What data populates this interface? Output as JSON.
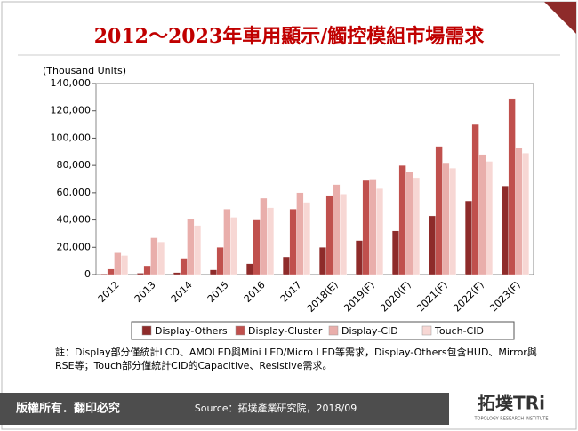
{
  "chart_data": {
    "type": "bar",
    "title": "2012～2023年車用顯示/觸控模組市場需求",
    "y_label": "(Thousand Units)",
    "categories": [
      "2012",
      "2013",
      "2014",
      "2015",
      "2016",
      "2017",
      "2018(E)",
      "2019(F)",
      "2020(F)",
      "2021(F)",
      "2022(F)",
      "2023(F)"
    ],
    "series": [
      {
        "name": "Display-Others",
        "color": "#8e2b2a",
        "values": [
          500,
          1000,
          1500,
          3500,
          8000,
          13000,
          20000,
          25000,
          32000,
          43000,
          54000,
          65000
        ]
      },
      {
        "name": "Display-Cluster",
        "color": "#c0504d",
        "values": [
          4000,
          6500,
          12000,
          20000,
          40000,
          48000,
          58000,
          69000,
          80000,
          94000,
          110000,
          129000
        ]
      },
      {
        "name": "Display-CID",
        "color": "#e9aeab",
        "values": [
          16000,
          27000,
          41000,
          48000,
          56000,
          60000,
          66000,
          70000,
          75000,
          82000,
          88000,
          93000
        ]
      },
      {
        "name": "Touch-CID",
        "color": "#f7d7d4",
        "values": [
          14000,
          24000,
          36000,
          42000,
          49000,
          53000,
          59000,
          63000,
          71000,
          78000,
          83000,
          89000
        ]
      }
    ],
    "ylim": [
      0,
      140000
    ],
    "yticks": [
      0,
      {
        "value": 20000,
        "label": "20,000"
      },
      {
        "value": 40000,
        "label": "40,000"
      },
      {
        "value": 60000,
        "label": "60,000"
      },
      {
        "value": 80000,
        "label": "80,000"
      },
      {
        "value": 100000,
        "label": "100,000"
      },
      {
        "value": 120000,
        "label": "120,000"
      },
      {
        "value": 140000,
        "label": "140,000"
      }
    ],
    "note": "註：Display部分僅統計LCD、AMOLED與Mini LED/Micro LED等需求，Display-Others包含HUD、Mirror與RSE等；Touch部分僅統計CID的Capacitive、Resistive需求。"
  },
  "footer": {
    "rights": "版權所有．翻印必究",
    "source": "Source：拓墣產業研究院，2018/09",
    "logo": "拓墣TRi",
    "logo_sub": "TOPOLOGY RESEARCH INSTITUTE"
  }
}
